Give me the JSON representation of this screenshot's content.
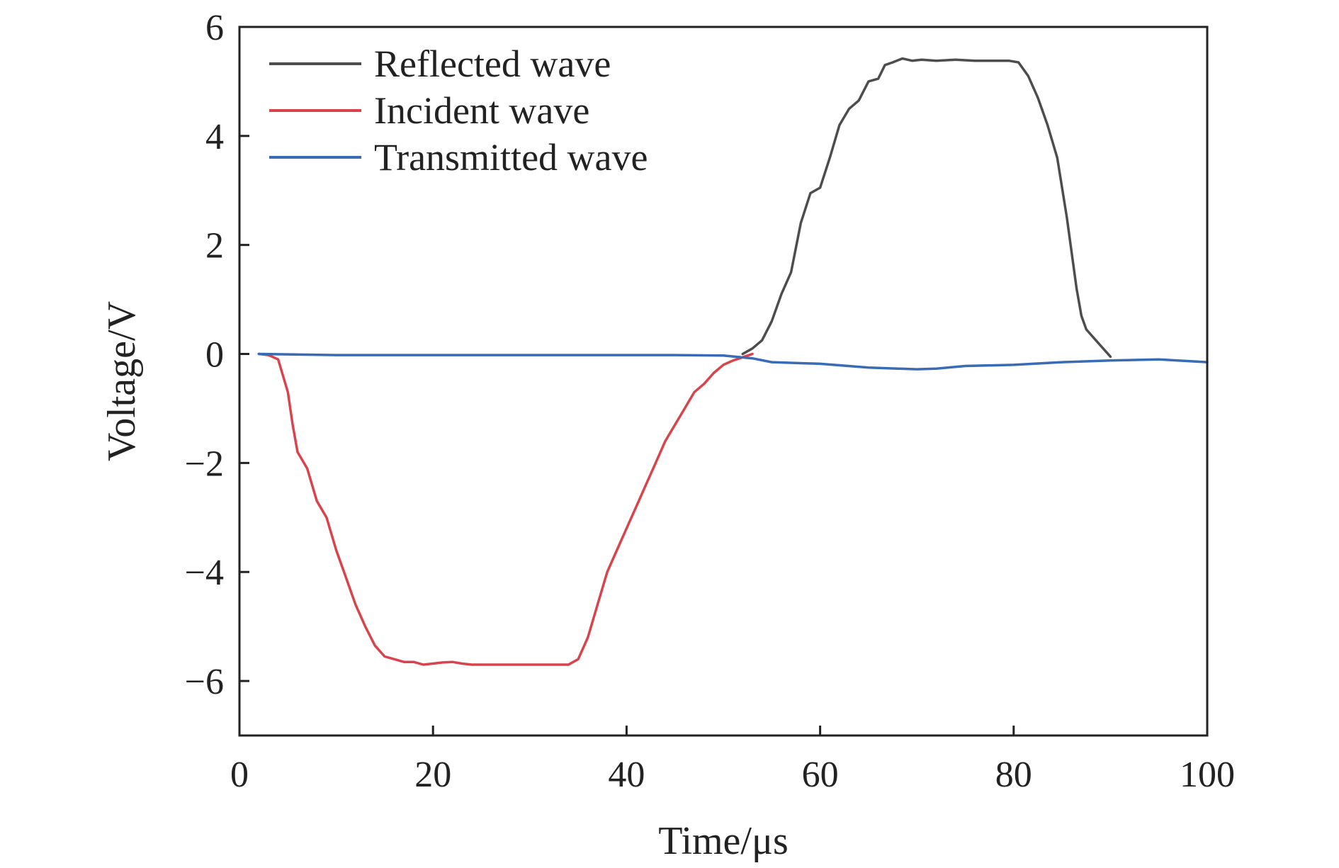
{
  "chart_data": {
    "type": "line",
    "title": "",
    "xlabel": "Time/μs",
    "ylabel": "Voltage/V",
    "xlim": [
      0,
      100
    ],
    "ylim": [
      -7,
      6
    ],
    "xticks": [
      0,
      20,
      40,
      60,
      80,
      100
    ],
    "xtick_labels": [
      "0",
      "20",
      "40",
      "60",
      "80",
      "100"
    ],
    "yticks": [
      6,
      4,
      2,
      0,
      -2,
      -4,
      -6
    ],
    "ytick_labels": [
      "6",
      "4",
      "2",
      "0",
      "−2",
      "−4",
      "−6"
    ],
    "grid": false,
    "legend_position": "top-left",
    "series": [
      {
        "name": "Reflected wave",
        "color": "#4d4d4d",
        "x": [
          52,
          53,
          54,
          55,
          56,
          57,
          58,
          59,
          60,
          61,
          62,
          63,
          64,
          65,
          66,
          66.7,
          67.5,
          68.5,
          69.5,
          70.5,
          72,
          74,
          76,
          78,
          79.5,
          80.5,
          81.5,
          82.5,
          83.5,
          84.5,
          85.5,
          86.5,
          87,
          87.5,
          88,
          88.5,
          89,
          89.5,
          90
        ],
        "y": [
          0,
          0.1,
          0.25,
          0.6,
          1.1,
          1.5,
          2.4,
          2.95,
          3.05,
          3.6,
          4.2,
          4.5,
          4.65,
          5.0,
          5.05,
          5.3,
          5.35,
          5.42,
          5.38,
          5.4,
          5.38,
          5.4,
          5.38,
          5.38,
          5.38,
          5.35,
          5.1,
          4.7,
          4.2,
          3.6,
          2.5,
          1.2,
          0.7,
          0.45,
          0.35,
          0.25,
          0.15,
          0.05,
          -0.05
        ]
      },
      {
        "name": "Incident wave",
        "color": "#d9434b",
        "x": [
          2,
          3,
          4,
          5,
          5.5,
          6,
          7,
          8,
          9,
          10,
          11,
          12,
          13,
          14,
          15,
          16,
          17,
          18,
          19,
          20,
          21,
          22,
          23,
          24,
          26,
          28,
          30,
          32,
          34,
          35,
          36,
          37,
          38,
          39,
          40,
          41,
          42,
          43,
          44,
          45,
          46,
          47,
          48,
          49,
          50,
          51,
          52,
          53
        ],
        "y": [
          0,
          -0.02,
          -0.1,
          -0.7,
          -1.3,
          -1.8,
          -2.1,
          -2.7,
          -3.0,
          -3.6,
          -4.1,
          -4.6,
          -5.0,
          -5.35,
          -5.55,
          -5.6,
          -5.65,
          -5.65,
          -5.7,
          -5.68,
          -5.66,
          -5.65,
          -5.68,
          -5.7,
          -5.7,
          -5.7,
          -5.7,
          -5.7,
          -5.7,
          -5.6,
          -5.2,
          -4.6,
          -4.0,
          -3.6,
          -3.2,
          -2.8,
          -2.4,
          -2.0,
          -1.6,
          -1.3,
          -1.0,
          -0.7,
          -0.55,
          -0.35,
          -0.2,
          -0.12,
          -0.06,
          0
        ]
      },
      {
        "name": "Transmitted wave",
        "color": "#3a6bb5",
        "x": [
          2,
          10,
          20,
          30,
          40,
          45,
          50,
          53,
          55,
          60,
          65,
          70,
          72,
          75,
          80,
          85,
          90,
          95,
          100
        ],
        "y": [
          0,
          -0.02,
          -0.02,
          -0.02,
          -0.02,
          -0.02,
          -0.03,
          -0.08,
          -0.15,
          -0.18,
          -0.25,
          -0.28,
          -0.27,
          -0.22,
          -0.2,
          -0.15,
          -0.12,
          -0.1,
          -0.15
        ]
      }
    ]
  }
}
